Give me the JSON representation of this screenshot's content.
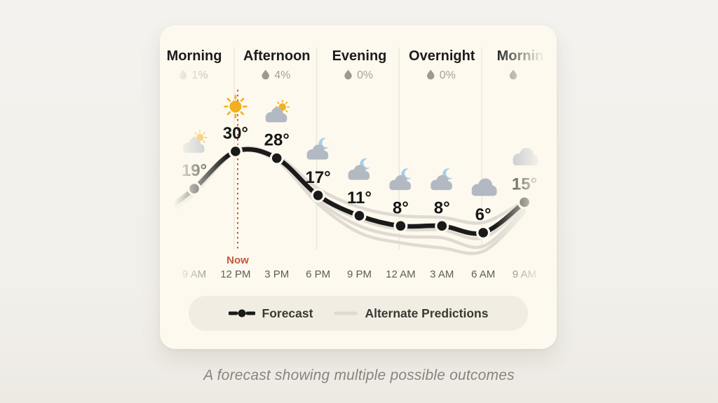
{
  "card": {
    "periods": [
      {
        "label": "Morning",
        "precip": "1%"
      },
      {
        "label": "Afternoon",
        "precip": "4%"
      },
      {
        "label": "Evening",
        "precip": "0%"
      },
      {
        "label": "Overnight",
        "precip": "0%"
      },
      {
        "label": "Morning",
        "precip": ""
      }
    ],
    "now_label": "Now",
    "legend": {
      "forecast_label": "Forecast",
      "alternate_label": "Alternate Predictions"
    }
  },
  "caption": "A forecast showing multiple possible outcomes",
  "chart_data": {
    "type": "line",
    "x": [
      "9 AM",
      "12 PM",
      "3 PM",
      "6 PM",
      "9 PM",
      "12 AM",
      "3 AM",
      "6 AM",
      "9 AM"
    ],
    "now_tick": "12 PM",
    "unit": "°",
    "point_labels": [
      "19°",
      "30°",
      "28°",
      "17°",
      "11°",
      "8°",
      "8°",
      "6°",
      "15°"
    ],
    "icons": [
      "cloud-sun-icon",
      "sun-icon",
      "cloud-sun-icon",
      "cloud-moon-icon",
      "cloud-moon-icon",
      "cloud-moon-icon",
      "cloud-moon-icon",
      "cloud-icon",
      "cloud-icon"
    ],
    "series": [
      {
        "name": "Forecast",
        "values": [
          19,
          30,
          28,
          17,
          11,
          8,
          8,
          6,
          15
        ]
      },
      {
        "name": "Alternate Prediction 1",
        "approx": true,
        "values": [
          19.5,
          30.2,
          28.6,
          19,
          13.5,
          11,
          10.5,
          9,
          15.5
        ]
      },
      {
        "name": "Alternate Prediction 2",
        "approx": true,
        "values": [
          18.5,
          29.8,
          27.8,
          16.5,
          10,
          7,
          6.8,
          4.5,
          14
        ]
      },
      {
        "name": "Alternate Prediction 3",
        "approx": true,
        "values": [
          18,
          30.4,
          28.2,
          15.5,
          8,
          5,
          4.5,
          2,
          13
        ]
      },
      {
        "name": "Alternate Prediction 4",
        "approx": true,
        "values": [
          17.5,
          29.6,
          27.2,
          14.5,
          6,
          3,
          1.5,
          0.5,
          12
        ]
      }
    ],
    "legend_position": "bottom",
    "grid": "faint vertical dividers between day periods"
  },
  "colors": {
    "page_bg": "#f3f1ec",
    "card_bg": "#fdf9ee",
    "forecast_line": "#1a1a1a",
    "alternate_line": "#dfdbd2",
    "now_marker": "#c05a3c",
    "sun": "#f2b01e",
    "cloud": "#b2b9c3",
    "moon": "#a9cde5",
    "legend_bg": "#f1ede3"
  }
}
